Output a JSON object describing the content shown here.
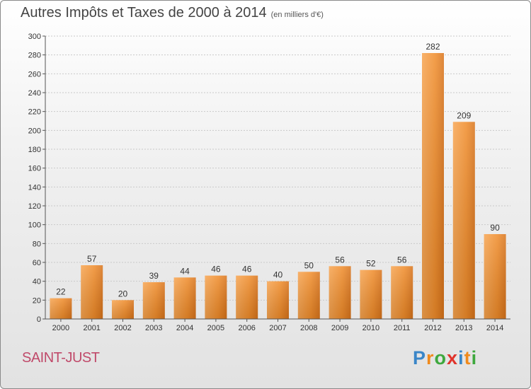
{
  "title": "Autres Impôts et Taxes de 2000 à 2014",
  "unit_note": "(en milliers d'€)",
  "commune": "SAINT-JUST",
  "brand": {
    "letters": [
      "P",
      "r",
      "o",
      "x",
      "i",
      "t",
      "i"
    ],
    "colors": [
      "#3a86c8",
      "#f08a1c",
      "#3ea83e",
      "#e0342c",
      "#3a86c8",
      "#f08a1c",
      "#3ea83e"
    ]
  },
  "chart_data": {
    "type": "bar",
    "categories": [
      "2000",
      "2001",
      "2002",
      "2003",
      "2004",
      "2005",
      "2006",
      "2007",
      "2008",
      "2009",
      "2010",
      "2011",
      "2012",
      "2013",
      "2014"
    ],
    "values": [
      22,
      57,
      20,
      39,
      44,
      46,
      46,
      40,
      50,
      56,
      52,
      56,
      282,
      209,
      90
    ],
    "ylim": [
      0,
      300
    ],
    "yticks": [
      0,
      20,
      40,
      60,
      80,
      100,
      120,
      140,
      160,
      180,
      200,
      220,
      240,
      260,
      280,
      300
    ],
    "grid": true,
    "bar_color": "#f08c2a"
  }
}
